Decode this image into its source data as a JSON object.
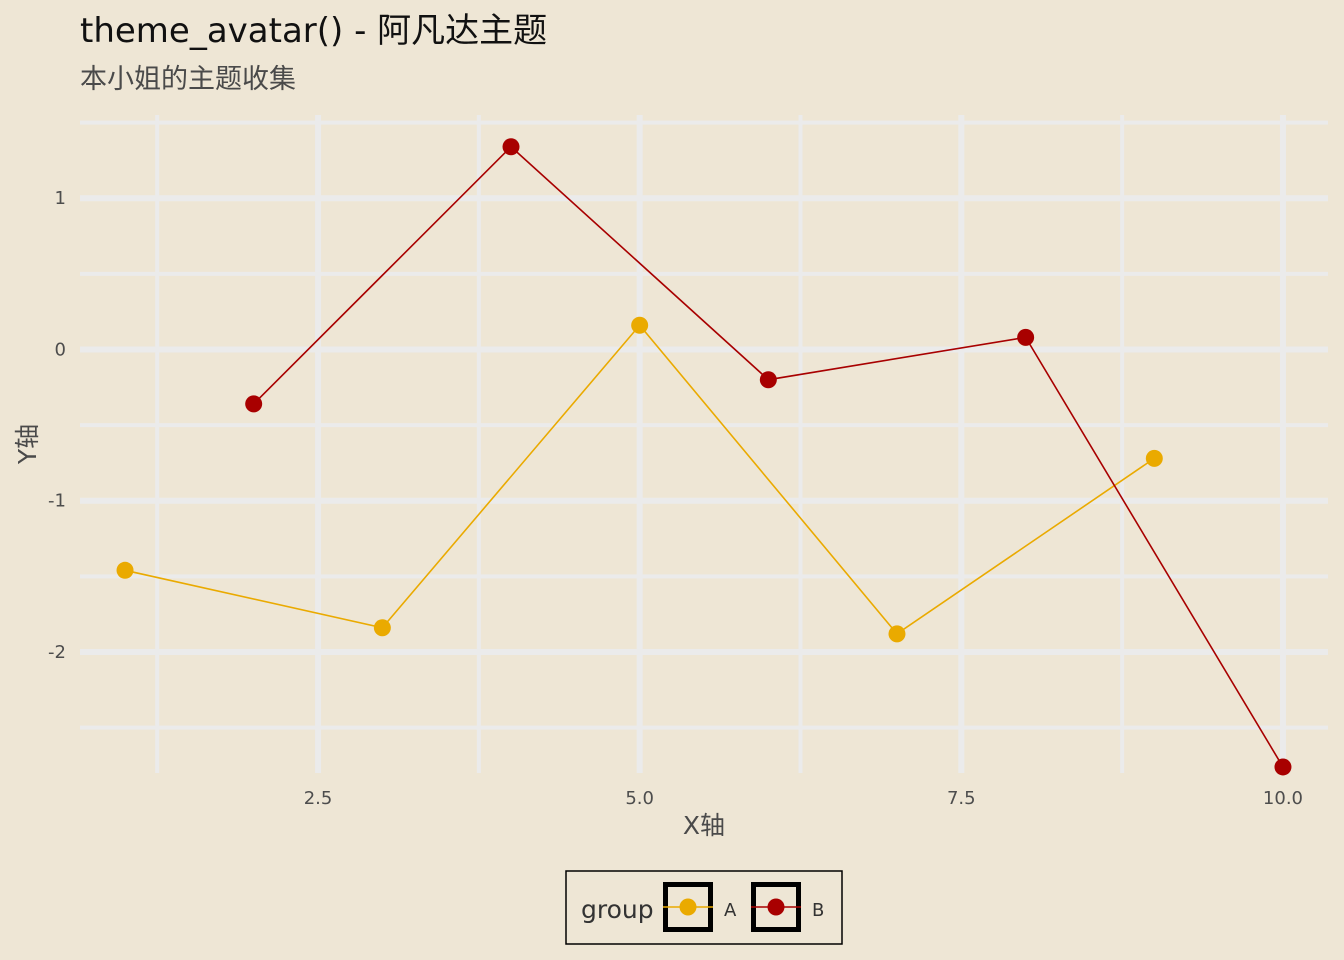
{
  "chart_data": {
    "type": "line",
    "title": "theme_avatar() - 阿凡达主题",
    "subtitle": "本小姐的主题收集",
    "xlabel": "X轴",
    "ylabel": "Y轴",
    "xlim": [
      0.65,
      10.35
    ],
    "ylim": [
      -2.8,
      1.55
    ],
    "x_ticks": [
      2.5,
      5.0,
      7.5,
      10.0
    ],
    "x_tick_labels": [
      "2.5",
      "5.0",
      "7.5",
      "10.0"
    ],
    "y_ticks": [
      -2,
      -1,
      0,
      1
    ],
    "y_tick_labels": [
      "-2",
      "-1",
      "0",
      "1"
    ],
    "grid": true,
    "legend": {
      "title": "group",
      "position": "bottom"
    },
    "series": [
      {
        "name": "A",
        "color": "#EAAA00",
        "x": [
          1,
          3,
          5,
          7,
          9
        ],
        "y": [
          -1.46,
          -1.84,
          0.16,
          -1.88,
          -0.72
        ]
      },
      {
        "name": "B",
        "color": "#A80000",
        "x": [
          2,
          4,
          6,
          8,
          10
        ],
        "y": [
          -0.36,
          1.34,
          -0.2,
          0.08,
          -2.76
        ]
      }
    ]
  },
  "colors": {
    "background": "#EEE6D5",
    "grid": "#EBEBEB"
  }
}
